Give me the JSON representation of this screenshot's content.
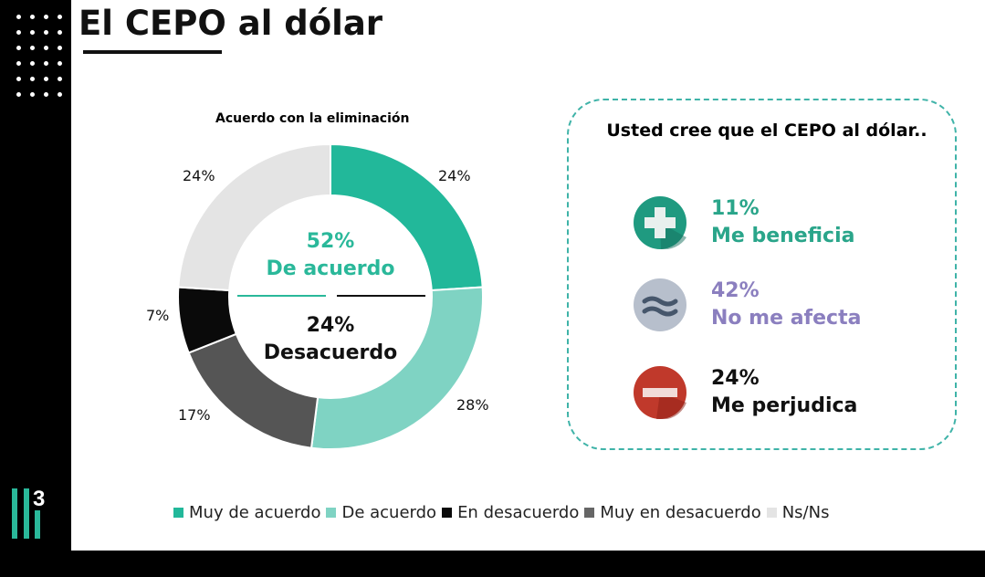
{
  "title": "El CEPO al dólar",
  "logo_text": "3",
  "chart_data": {
    "type": "pie",
    "donut": true,
    "title": "Acuerdo con la eliminación",
    "categories": [
      "Muy de acuerdo",
      "De acuerdo",
      "Muy en desacuerdo",
      "En desacuerdo",
      "Ns/Ns"
    ],
    "values": [
      24,
      28,
      17,
      7,
      24
    ],
    "labels": [
      "24%",
      "28%",
      "17%",
      "7%",
      "24%"
    ],
    "colors": [
      "#22b89a",
      "#7fd3c3",
      "#555555",
      "#0a0a0a",
      "#e4e4e4"
    ],
    "legend": [
      {
        "name": "Muy de acuerdo",
        "color": "#22b89a"
      },
      {
        "name": "De acuerdo",
        "color": "#7fd3c3"
      },
      {
        "name": "En desacuerdo",
        "color": "#0a0a0a"
      },
      {
        "name": "Muy en desacuerdo",
        "color": "#666666"
      },
      {
        "name": "Ns/Ns",
        "color": "#e4e4e4"
      }
    ],
    "legend_position": "bottom",
    "center": {
      "agree_pct": "52%",
      "agree_label": "De acuerdo",
      "disagree_pct": "24%",
      "disagree_label": "Desacuerdo"
    }
  },
  "panel": {
    "title": "Usted cree que el CEPO al dólar..",
    "items": [
      {
        "pct": "11%",
        "label": "Me beneficia",
        "icon": "plus-icon",
        "color": "#2aa58a"
      },
      {
        "pct": "42%",
        "label": "No me afecta",
        "icon": "approx-icon",
        "color": "#8b7fbf"
      },
      {
        "pct": "24%",
        "label": "Me perjudica",
        "icon": "minus-icon",
        "color": "#111111"
      }
    ]
  }
}
